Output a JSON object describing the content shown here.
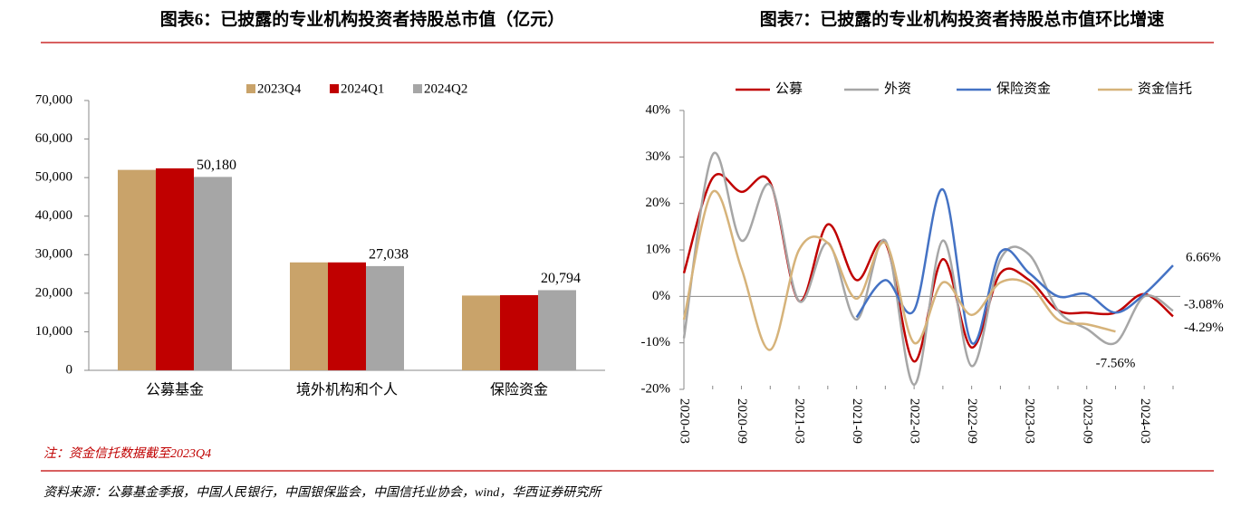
{
  "chart_data": [
    {
      "type": "bar",
      "title": "图表6：已披露的专业机构投资者持股总市值（亿元）",
      "categories": [
        "公募基金",
        "境外机构和个人",
        "保险资金"
      ],
      "series": [
        {
          "name": "2023Q4",
          "color": "#c9a36a",
          "values": [
            52000,
            28000,
            19400
          ]
        },
        {
          "name": "2024Q1",
          "color": "#c00000",
          "values": [
            52400,
            28000,
            19500
          ]
        },
        {
          "name": "2024Q2",
          "color": "#a6a6a6",
          "values": [
            50180,
            27038,
            20794
          ],
          "value_labels": [
            "50,180",
            "27,038",
            "20,794"
          ]
        }
      ],
      "ylim": [
        0,
        70000
      ],
      "yticks": [
        0,
        {
          "value": 10000,
          "label": "10,000"
        },
        {
          "value": 20000,
          "label": "20,000"
        },
        {
          "value": 30000,
          "label": "30,000"
        },
        {
          "value": 40000,
          "label": "40,000"
        },
        {
          "value": 50000,
          "label": "50,000"
        },
        {
          "value": 60000,
          "label": "60,000"
        },
        {
          "value": 70000,
          "label": "70,000"
        }
      ],
      "legend": "top"
    },
    {
      "type": "line",
      "title": "图表7：已披露的专业机构投资者持股总市值环比增速",
      "categories": [
        "2020-03",
        null,
        "2020-09",
        null,
        "2021-03",
        null,
        "2021-09",
        null,
        "2022-03",
        null,
        "2022-09",
        null,
        "2023-03",
        null,
        "2023-09",
        null,
        "2024-03",
        null
      ],
      "series": [
        {
          "name": "公募",
          "color": "#c00000",
          "values": [
            5,
            25.5,
            22.5,
            24.5,
            -1,
            15.5,
            3.5,
            11.5,
            -14,
            8,
            -11,
            5,
            3.5,
            -3,
            -3.5,
            -3.5,
            0.5,
            -4.29
          ],
          "value_labels": [
            null,
            null,
            null,
            null,
            null,
            null,
            null,
            null,
            null,
            null,
            null,
            null,
            null,
            null,
            null,
            null,
            null,
            "-4.29%"
          ]
        },
        {
          "name": "外资",
          "color": "#a6a6a6",
          "values": [
            -9,
            30.5,
            12,
            24,
            -1,
            11.5,
            -5,
            12,
            -19,
            12,
            -15,
            8,
            9,
            -3,
            -7,
            -10,
            0,
            -3.08
          ],
          "value_labels": [
            null,
            null,
            null,
            null,
            null,
            null,
            null,
            null,
            null,
            null,
            null,
            null,
            null,
            null,
            null,
            null,
            null,
            "-3.08%"
          ]
        },
        {
          "name": "保险资金",
          "color": "#4472c4",
          "values": [
            null,
            null,
            null,
            null,
            null,
            null,
            -4.5,
            3.5,
            -3,
            23,
            -10,
            9.5,
            5,
            0,
            0.5,
            -3.5,
            0.5,
            6.66
          ],
          "value_labels": [
            null,
            null,
            null,
            null,
            null,
            null,
            null,
            null,
            null,
            null,
            null,
            null,
            null,
            null,
            null,
            null,
            null,
            "6.66%"
          ]
        },
        {
          "name": "资金信托",
          "color": "#d6b37a",
          "values": [
            -5,
            22.5,
            6,
            -11.5,
            10,
            11.5,
            -0.5,
            11.5,
            -10,
            3,
            -4,
            3,
            2.5,
            -5,
            -6,
            -7.56,
            null,
            null
          ],
          "value_labels": [
            null,
            null,
            null,
            null,
            null,
            null,
            null,
            null,
            null,
            null,
            null,
            null,
            null,
            null,
            null,
            "-7.56%",
            null,
            null
          ]
        }
      ],
      "ylim": [
        -20,
        40
      ],
      "yticks": [
        {
          "value": -20,
          "label": "-20%"
        },
        {
          "value": -10,
          "label": "-10%"
        },
        {
          "value": 0,
          "label": "0%"
        },
        {
          "value": 10,
          "label": "10%"
        },
        {
          "value": 20,
          "label": "20%"
        },
        {
          "value": 30,
          "label": "30%"
        },
        {
          "value": 40,
          "label": "40%"
        }
      ],
      "legend": "top"
    }
  ],
  "note": "注：资金信托数据截至2023Q4",
  "source": "资料来源：公募基金季报，中国人民银行，中国银保监会，中国信托业协会，wind，华西证券研究所"
}
